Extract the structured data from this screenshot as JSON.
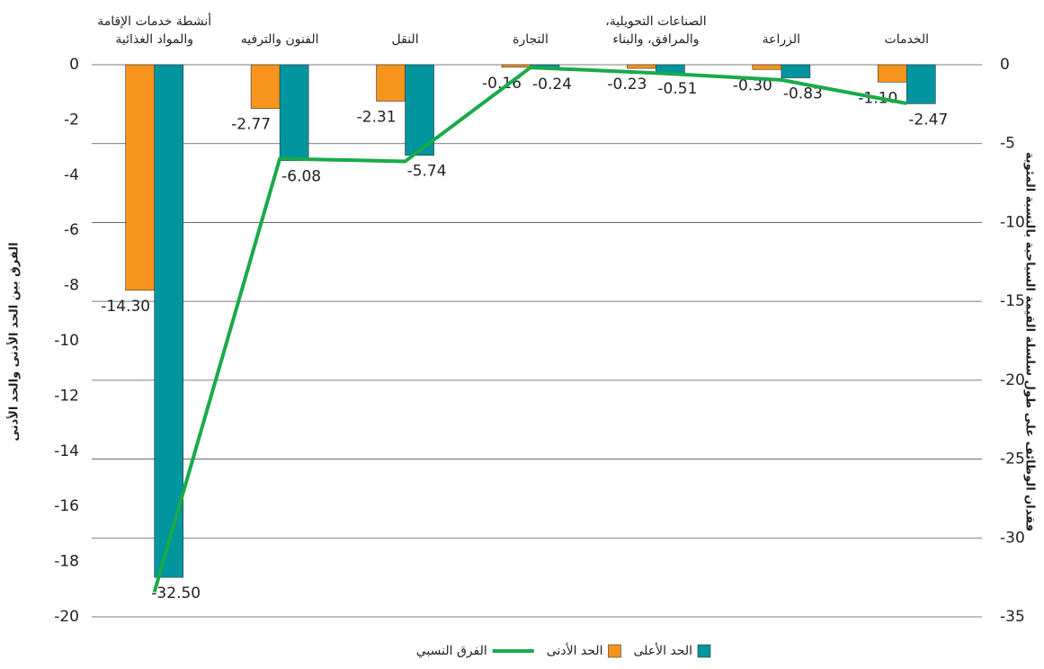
{
  "chart_data": {
    "type": "bar",
    "categories": [
      "أنشطة خدمات الإقامة\nوالمواد الغذائية",
      "الفنون والترفيه",
      "النقل",
      "التجارة",
      "الصناعات التحويلية،\nوالمرافق، والبناء",
      "الزراعة",
      "الخدمات"
    ],
    "series": [
      {
        "name": "الحد الأدنى",
        "color": "#f7941d",
        "axis": "y2",
        "values": [
          -14.3,
          -2.77,
          -2.31,
          -0.16,
          -0.23,
          -0.3,
          -1.1
        ],
        "value_labels": [
          "-14.30",
          "-2.77",
          "-2.31",
          "-0.16",
          "-0.23",
          "-0.30",
          "-1.10"
        ]
      },
      {
        "name": "الحد الأعلى",
        "color": "#00959f",
        "axis": "y2",
        "values": [
          -32.5,
          -6.08,
          -5.74,
          -0.24,
          -0.51,
          -0.83,
          -2.47
        ],
        "value_labels": [
          "-32.50",
          "-6.08",
          "-5.74",
          "-0.24",
          "-0.51",
          "-0.83",
          "-2.47"
        ]
      },
      {
        "name": "الفرق النسبي",
        "color": "#1aaa4a",
        "type": "line",
        "values": [
          -19.1,
          -3.4,
          -3.5,
          -0.1,
          -0.3,
          -0.55,
          -1.4
        ]
      }
    ],
    "ylabel": "الفرق بين الحد الأدنى والحد الأدنى",
    "y2label": "فقدان الوظائف على طول سلسلة القيمة السياحية بالنسبة المئوية",
    "ylim": [
      -20,
      0
    ],
    "yticks": [
      0,
      -2,
      -4,
      -6,
      -8,
      -10,
      -12,
      -14,
      -16,
      -18,
      -20
    ],
    "y2lim": [
      -35,
      0
    ],
    "y2ticks": [
      0,
      -5,
      -10,
      -15,
      -20,
      -25,
      -30,
      -35
    ],
    "grid": true
  }
}
